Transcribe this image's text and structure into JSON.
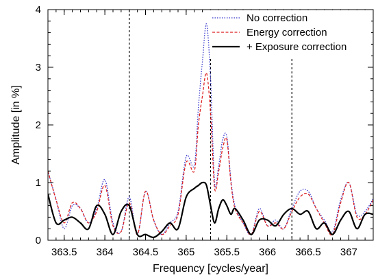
{
  "chart_data": {
    "type": "line",
    "xlabel": "Frequency [cycles/year]",
    "ylabel": "Amplitude [in %]",
    "xlim": [
      363.3,
      367.3
    ],
    "ylim": [
      0,
      4
    ],
    "x_ticks": [
      363.5,
      364,
      364.5,
      365,
      365.5,
      366,
      366.5,
      367
    ],
    "x_tick_labels": [
      "363.5",
      "364",
      "364.5",
      "365",
      "365.5",
      "366",
      "366.5",
      "367"
    ],
    "y_ticks": [
      0,
      1,
      2,
      3,
      4
    ],
    "y_tick_labels": [
      "0",
      "1",
      "2",
      "3",
      "4"
    ],
    "grid": false,
    "legend_position": "top-right",
    "vertical_lines": [
      364.3,
      365.3,
      366.3
    ],
    "series": [
      {
        "name": "No correction",
        "color": "#3333cc",
        "dash": "dotted",
        "x": [
          363.3,
          363.4,
          363.5,
          363.6,
          363.7,
          363.8,
          363.9,
          364.0,
          364.1,
          364.2,
          364.3,
          364.4,
          364.5,
          364.6,
          364.7,
          364.8,
          364.9,
          365.0,
          365.1,
          365.15,
          365.2,
          365.25,
          365.3,
          365.35,
          365.4,
          365.45,
          365.5,
          365.55,
          365.6,
          365.7,
          365.8,
          365.9,
          366.0,
          366.1,
          366.2,
          366.3,
          366.4,
          366.5,
          366.6,
          366.7,
          366.8,
          366.9,
          367.0,
          367.1,
          367.2,
          367.3
        ],
        "y": [
          1.2,
          0.7,
          0.2,
          0.6,
          0.55,
          0.3,
          0.55,
          1.05,
          0.3,
          0.15,
          0.75,
          0.1,
          0.85,
          0.35,
          0.1,
          0.3,
          0.5,
          1.45,
          1.3,
          2.3,
          3.1,
          3.75,
          2.8,
          1.0,
          1.3,
          1.75,
          1.8,
          1.05,
          0.6,
          0.3,
          0.1,
          0.55,
          0.25,
          0.35,
          0.2,
          0.55,
          0.85,
          0.85,
          0.55,
          0.35,
          0.15,
          0.7,
          1.0,
          0.45,
          0.5,
          0.72
        ]
      },
      {
        "name": "Energy correction",
        "color": "#dd2222",
        "dash": "dashed",
        "x": [
          363.3,
          363.4,
          363.5,
          363.6,
          363.7,
          363.8,
          363.9,
          364.0,
          364.1,
          364.2,
          364.3,
          364.4,
          364.5,
          364.6,
          364.7,
          364.8,
          364.9,
          365.0,
          365.1,
          365.15,
          365.2,
          365.25,
          365.3,
          365.35,
          365.4,
          365.45,
          365.5,
          365.55,
          365.6,
          365.7,
          365.8,
          365.9,
          366.0,
          366.1,
          366.2,
          366.3,
          366.4,
          366.5,
          366.6,
          366.7,
          366.8,
          366.9,
          367.0,
          367.1,
          367.2,
          367.3
        ],
        "y": [
          1.2,
          0.7,
          0.3,
          0.65,
          0.55,
          0.3,
          0.5,
          0.95,
          0.25,
          0.15,
          0.65,
          0.1,
          0.85,
          0.35,
          0.1,
          0.25,
          0.45,
          1.35,
          1.2,
          2.0,
          2.5,
          2.9,
          2.2,
          0.9,
          1.2,
          1.6,
          1.75,
          1.0,
          0.55,
          0.3,
          0.1,
          0.5,
          0.25,
          0.3,
          0.2,
          0.5,
          0.75,
          0.8,
          0.55,
          0.3,
          0.1,
          0.65,
          1.0,
          0.4,
          0.45,
          0.7
        ]
      },
      {
        "name": "+ Exposure correction",
        "color": "#000000",
        "dash": "solid",
        "x": [
          363.3,
          363.4,
          363.5,
          363.6,
          363.7,
          363.8,
          363.9,
          364.0,
          364.1,
          364.2,
          364.3,
          364.4,
          364.5,
          364.6,
          364.7,
          364.8,
          364.9,
          365.0,
          365.1,
          365.15,
          365.2,
          365.25,
          365.3,
          365.35,
          365.4,
          365.45,
          365.5,
          365.55,
          365.6,
          365.7,
          365.8,
          365.9,
          366.0,
          366.1,
          366.2,
          366.3,
          366.4,
          366.5,
          366.6,
          366.7,
          366.8,
          366.9,
          367.0,
          367.1,
          367.2,
          367.3
        ],
        "y": [
          0.8,
          0.3,
          0.35,
          0.4,
          0.3,
          0.2,
          0.6,
          0.45,
          0.1,
          0.5,
          0.6,
          0.1,
          0.1,
          0.05,
          0.15,
          0.3,
          0.2,
          0.75,
          0.9,
          0.95,
          1.0,
          0.95,
          0.6,
          0.3,
          0.55,
          0.7,
          0.6,
          0.45,
          0.55,
          0.35,
          0.1,
          0.35,
          0.35,
          0.25,
          0.45,
          0.55,
          0.45,
          0.5,
          0.2,
          0.3,
          0.1,
          0.35,
          0.5,
          0.2,
          0.45,
          0.45
        ]
      }
    ]
  }
}
